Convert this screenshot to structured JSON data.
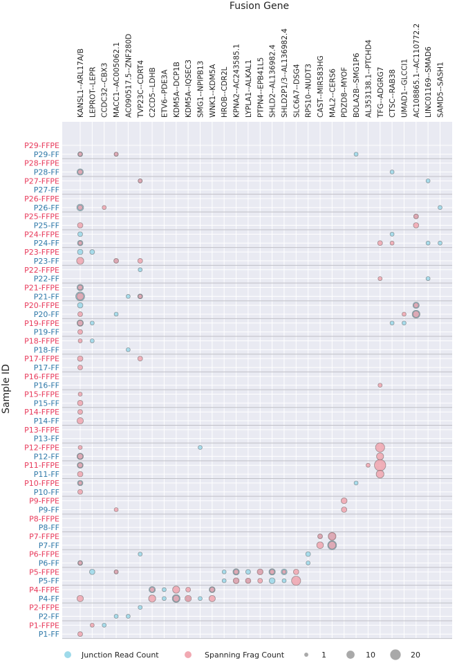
{
  "chart_data": {
    "type": "scatter",
    "xlabel": "Fusion Gene",
    "ylabel": "Sample ID",
    "grid": true,
    "legend": "bottom",
    "colors": {
      "junction": "#8dd3e6",
      "spanning": "#ef9aa4",
      "ffpe_label": "#e8395a",
      "ff_label": "#2e78a8",
      "panel": "#e9eaf2"
    },
    "genes": [
      "KANSL1--ARL17A/B",
      "LEPROT--LEPR",
      "CCDC32--CBX3",
      "MACC1--AC005062.1",
      "AC090517.5--ZNF280D",
      "TVP23C--CDRT4",
      "C2CD5--LDHB",
      "ETV6--PDE3A",
      "KDM5A--DCP1B",
      "KDM5A--IQSEC3",
      "SMG1--NPIPB13",
      "WNK1--KDM5A",
      "HROB--CDR2L",
      "KPNA2--AC243585.1",
      "LYPLA1--ALKAL1",
      "PTPN4--EPB41L5",
      "SHLD2--AL136982.4",
      "SHLD2P1/3--AL136982.4",
      "SLC6A7--DSG4",
      "RPS10--NUDT3",
      "CAST--MIR583HG",
      "MAL2--CERS6",
      "PDZD8--MYOF",
      "BOLA2B--SMG1P6",
      "AL353138.1--PTCHD4",
      "TFG--ADGRG7",
      "CTSC--RAB38",
      "UMAD1--GLCCI1",
      "AC108865.1--AC110772.2",
      "LINC01169--SMAD6",
      "SAMD5--SASH1"
    ],
    "samples": [
      "P29-FFPE",
      "P29-FF",
      "P28-FFPE",
      "P28-FF",
      "P27-FFPE",
      "P27-FF",
      "P26-FFPE",
      "P26-FF",
      "P25-FFPE",
      "P25-FF",
      "P24-FFPE",
      "P24-FF",
      "P23-FFPE",
      "P23-FF",
      "P22-FFPE",
      "P22-FF",
      "P21-FFPE",
      "P21-FF",
      "P20-FFPE",
      "P20-FF",
      "P19-FFPE",
      "P19-FF",
      "P18-FFPE",
      "P18-FF",
      "P17-FFPE",
      "P17-FF",
      "P16-FFPE",
      "P16-FF",
      "P15-FFPE",
      "P15-FF",
      "P14-FFPE",
      "P14-FF",
      "P13-FFPE",
      "P13-FF",
      "P12-FFPE",
      "P12-FF",
      "P11-FFPE",
      "P11-FF",
      "P10-FFPE",
      "P10-FF",
      "P9-FFPE",
      "P9-FF",
      "P8-FFPE",
      "P8-FF",
      "P7-FFPE",
      "P7-FF",
      "P6-FFPE",
      "P6-FF",
      "P5-FFPE",
      "P5-FF",
      "P4-FFPE",
      "P4-FF",
      "P2-FFPE",
      "P2-FF",
      "P1-FFPE",
      "P1-FF"
    ],
    "series": [
      {
        "name": "Junction Read Count",
        "points": [
          [
            "P29-FF",
            "KANSL1--ARL17A/B",
            2
          ],
          [
            "P29-FF",
            "MACC1--AC005062.1",
            1
          ],
          [
            "P29-FF",
            "BOLA2B--SMG1P6",
            1
          ],
          [
            "P28-FF",
            "KANSL1--ARL17A/B",
            5
          ],
          [
            "P28-FF",
            "CTSC--RAB38",
            1
          ],
          [
            "P27-FFPE",
            "TVP23C--CDRT4",
            1
          ],
          [
            "P27-FFPE",
            "LINC01169--SMAD6",
            1
          ],
          [
            "P26-FF",
            "KANSL1--ARL17A/B",
            6
          ],
          [
            "P26-FF",
            "SAMD5--SASH1",
            1
          ],
          [
            "P25-FFPE",
            "AC108865.1--AC110772.2",
            1
          ],
          [
            "P24-FFPE",
            "KANSL1--ARL17A/B",
            2
          ],
          [
            "P24-FFPE",
            "CTSC--RAB38",
            1
          ],
          [
            "P24-FF",
            "KANSL1--ARL17A/B",
            3
          ],
          [
            "P24-FF",
            "LINC01169--SMAD6",
            1
          ],
          [
            "P24-FF",
            "SAMD5--SASH1",
            1
          ],
          [
            "P23-FFPE",
            "KANSL1--ARL17A/B",
            3
          ],
          [
            "P23-FFPE",
            "LEPROT--LEPR",
            2
          ],
          [
            "P23-FF",
            "MACC1--AC005062.1",
            1
          ],
          [
            "P22-FFPE",
            "TVP23C--CDRT4",
            1
          ],
          [
            "P22-FF",
            "LINC01169--SMAD6",
            1
          ],
          [
            "P21-FFPE",
            "KANSL1--ARL17A/B",
            5
          ],
          [
            "P21-FF",
            "KANSL1--ARL17A/B",
            13
          ],
          [
            "P21-FF",
            "AC090517.5--ZNF280D",
            1
          ],
          [
            "P21-FF",
            "TVP23C--CDRT4",
            2
          ],
          [
            "P20-FFPE",
            "KANSL1--ARL17A/B",
            3
          ],
          [
            "P20-FFPE",
            "AC108865.1--AC110772.2",
            5
          ],
          [
            "P20-FF",
            "MACC1--AC005062.1",
            1
          ],
          [
            "P20-FF",
            "AC108865.1--AC110772.2",
            9
          ],
          [
            "P19-FFPE",
            "KANSL1--ARL17A/B",
            5
          ],
          [
            "P19-FFPE",
            "LEPROT--LEPR",
            1
          ],
          [
            "P19-FFPE",
            "CTSC--RAB38",
            1
          ],
          [
            "P19-FFPE",
            "UMAD1--GLCCI1",
            1
          ],
          [
            "P18-FFPE",
            "LEPROT--LEPR",
            1
          ],
          [
            "P18-FF",
            "AC090517.5--ZNF280D",
            1
          ],
          [
            "P12-FFPE",
            "SMG1--NPIPB13",
            1
          ],
          [
            "P12-FF",
            "KANSL1--ARL17A/B",
            5
          ],
          [
            "P11-FFPE",
            "KANSL1--ARL17A/B",
            4
          ],
          [
            "P10-FFPE",
            "KANSL1--ARL17A/B",
            3
          ],
          [
            "P10-FFPE",
            "BOLA2B--SMG1P6",
            1
          ],
          [
            "P7-FFPE",
            "CAST--MIR583HG",
            1
          ],
          [
            "P7-FFPE",
            "MAL2--CERS6",
            6
          ],
          [
            "P7-FF",
            "MAL2--CERS6",
            13
          ],
          [
            "P6-FFPE",
            "TVP23C--CDRT4",
            1
          ],
          [
            "P6-FFPE",
            "RPS10--NUDT3",
            2
          ],
          [
            "P6-FF",
            "KANSL1--ARL17A/B",
            2
          ],
          [
            "P6-FF",
            "RPS10--NUDT3",
            1
          ],
          [
            "P5-FFPE",
            "LEPROT--LEPR",
            3
          ],
          [
            "P5-FFPE",
            "MACC1--AC005062.1",
            1
          ],
          [
            "P5-FFPE",
            "HROB--CDR2L",
            1
          ],
          [
            "P5-FFPE",
            "KPNA2--AC243585.1",
            5
          ],
          [
            "P5-FFPE",
            "LYPLA1--ALKAL1",
            2
          ],
          [
            "P5-FFPE",
            "PTPN4--EPB41L5",
            2
          ],
          [
            "P5-FFPE",
            "SHLD2--AL136982.4",
            5
          ],
          [
            "P5-FFPE",
            "SHLD2P1/3--AL136982.4",
            4
          ],
          [
            "P5-FF",
            "HROB--CDR2L",
            1
          ],
          [
            "P5-FF",
            "KPNA2--AC243585.1",
            2
          ],
          [
            "P5-FF",
            "LYPLA1--ALKAL1",
            1
          ],
          [
            "P5-FF",
            "SHLD2--AL136982.4",
            4
          ],
          [
            "P5-FF",
            "SHLD2P1/3--AL136982.4",
            1
          ],
          [
            "P4-FFPE",
            "C2CD5--LDHB",
            5
          ],
          [
            "P4-FFPE",
            "ETV6--PDE3A",
            1
          ],
          [
            "P4-FFPE",
            "WNK1--KDM5A",
            4
          ],
          [
            "P4-FF",
            "ETV6--PDE3A",
            1
          ],
          [
            "P4-FF",
            "KDM5A--DCP1B",
            9
          ],
          [
            "P4-FF",
            "KDM5A--IQSEC3",
            1
          ],
          [
            "P4-FF",
            "SMG1--NPIPB13",
            1
          ],
          [
            "P2-FFPE",
            "TVP23C--CDRT4",
            1
          ],
          [
            "P2-FF",
            "MACC1--AC005062.1",
            1
          ],
          [
            "P2-FF",
            "AC090517.5--ZNF280D",
            1
          ],
          [
            "P1-FFPE",
            "CCDC32--CBX3",
            1
          ]
        ]
      },
      {
        "name": "Spanning Frag Count",
        "points": [
          [
            "P29-FF",
            "KANSL1--ARL17A/B",
            1
          ],
          [
            "P29-FF",
            "MACC1--AC005062.1",
            1
          ],
          [
            "P28-FF",
            "KANSL1--ARL17A/B",
            2
          ],
          [
            "P27-FFPE",
            "TVP23C--CDRT4",
            1
          ],
          [
            "P26-FF",
            "KANSL1--ARL17A/B",
            2
          ],
          [
            "P26-FF",
            "CCDC32--CBX3",
            1
          ],
          [
            "P25-FFPE",
            "AC108865.1--AC110772.2",
            2
          ],
          [
            "P25-FF",
            "KANSL1--ARL17A/B",
            3
          ],
          [
            "P25-FF",
            "AC108865.1--AC110772.2",
            3
          ],
          [
            "P24-FF",
            "KANSL1--ARL17A/B",
            1
          ],
          [
            "P24-FF",
            "TFG--ADGRG7",
            2
          ],
          [
            "P24-FF",
            "CTSC--RAB38",
            1
          ],
          [
            "P23-FF",
            "KANSL1--ARL17A/B",
            7
          ],
          [
            "P23-FF",
            "MACC1--AC005062.1",
            2
          ],
          [
            "P23-FF",
            "TVP23C--CDRT4",
            2
          ],
          [
            "P22-FF",
            "TFG--ADGRG7",
            1
          ],
          [
            "P21-FFPE",
            "KANSL1--ARL17A/B",
            2
          ],
          [
            "P21-FF",
            "KANSL1--ARL17A/B",
            7
          ],
          [
            "P21-FF",
            "TVP23C--CDRT4",
            1
          ],
          [
            "P20-FFPE",
            "AC108865.1--AC110772.2",
            2
          ],
          [
            "P20-FF",
            "KANSL1--ARL17A/B",
            2
          ],
          [
            "P20-FF",
            "UMAD1--GLCCI1",
            1
          ],
          [
            "P20-FF",
            "AC108865.1--AC110772.2",
            5
          ],
          [
            "P19-FFPE",
            "KANSL1--ARL17A/B",
            3
          ],
          [
            "P19-FF",
            "KANSL1--ARL17A/B",
            2
          ],
          [
            "P18-FFPE",
            "KANSL1--ARL17A/B",
            1
          ],
          [
            "P17-FFPE",
            "KANSL1--ARL17A/B",
            3
          ],
          [
            "P17-FFPE",
            "TVP23C--CDRT4",
            2
          ],
          [
            "P17-FF",
            "KANSL1--ARL17A/B",
            2
          ],
          [
            "P16-FF",
            "TFG--ADGRG7",
            1
          ],
          [
            "P15-FFPE",
            "KANSL1--ARL17A/B",
            1
          ],
          [
            "P15-FF",
            "KANSL1--ARL17A/B",
            3
          ],
          [
            "P14-FFPE",
            "KANSL1--ARL17A/B",
            2
          ],
          [
            "P14-FF",
            "KANSL1--ARL17A/B",
            5
          ],
          [
            "P12-FFPE",
            "KANSL1--ARL17A/B",
            1
          ],
          [
            "P12-FFPE",
            "TFG--ADGRG7",
            14
          ],
          [
            "P12-FF",
            "KANSL1--ARL17A/B",
            3
          ],
          [
            "P12-FF",
            "TFG--ADGRG7",
            7
          ],
          [
            "P11-FFPE",
            "KANSL1--ARL17A/B",
            2
          ],
          [
            "P11-FFPE",
            "AL353138.1--PTCHD4",
            1
          ],
          [
            "P11-FFPE",
            "TFG--ADGRG7",
            24
          ],
          [
            "P11-FF",
            "KANSL1--ARL17A/B",
            3
          ],
          [
            "P11-FF",
            "TFG--ADGRG7",
            9
          ],
          [
            "P10-FFPE",
            "KANSL1--ARL17A/B",
            1
          ],
          [
            "P10-FF",
            "KANSL1--ARL17A/B",
            2
          ],
          [
            "P9-FFPE",
            "PDZD8--MYOF",
            4
          ],
          [
            "P9-FF",
            "MACC1--AC005062.1",
            1
          ],
          [
            "P9-FF",
            "PDZD8--MYOF",
            3
          ],
          [
            "P7-FFPE",
            "CAST--MIR583HG",
            2
          ],
          [
            "P7-FFPE",
            "MAL2--CERS6",
            9
          ],
          [
            "P7-FF",
            "CAST--MIR583HG",
            6
          ],
          [
            "P7-FF",
            "MAL2--CERS6",
            8
          ],
          [
            "P6-FF",
            "KANSL1--ARL17A/B",
            1
          ],
          [
            "P5-FFPE",
            "MACC1--AC005062.1",
            1
          ],
          [
            "P5-FFPE",
            "KPNA2--AC243585.1",
            2
          ],
          [
            "P5-FFPE",
            "PTPN4--EPB41L5",
            4
          ],
          [
            "P5-FFPE",
            "SHLD2--AL136982.4",
            2
          ],
          [
            "P5-FFPE",
            "SHLD2P1/3--AL136982.4",
            1
          ],
          [
            "P5-FFPE",
            "SLC6A7--DSG4",
            3
          ],
          [
            "P5-FF",
            "KPNA2--AC243585.1",
            4
          ],
          [
            "P5-FF",
            "LYPLA1--ALKAL1",
            3
          ],
          [
            "P5-FF",
            "PTPN4--EPB41L5",
            2
          ],
          [
            "P5-FF",
            "SLC6A7--DSG4",
            14
          ],
          [
            "P4-FFPE",
            "C2CD5--LDHB",
            2
          ],
          [
            "P4-FFPE",
            "KDM5A--DCP1B",
            7
          ],
          [
            "P4-FFPE",
            "KDM5A--IQSEC3",
            2
          ],
          [
            "P4-FFPE",
            "WNK1--KDM5A",
            2
          ],
          [
            "P4-FF",
            "KANSL1--ARL17A/B",
            5
          ],
          [
            "P4-FF",
            "C2CD5--LDHB",
            7
          ],
          [
            "P4-FF",
            "KDM5A--DCP1B",
            5
          ],
          [
            "P4-FF",
            "KDM5A--IQSEC3",
            5
          ],
          [
            "P4-FF",
            "WNK1--KDM5A",
            5
          ],
          [
            "P1-FFPE",
            "LEPROT--LEPR",
            1
          ],
          [
            "P1-FF",
            "KANSL1--ARL17A/B",
            2
          ]
        ]
      }
    ],
    "size_legend": [
      {
        "label": "1",
        "value": 1
      },
      {
        "label": "10",
        "value": 10
      },
      {
        "label": "20",
        "value": 20
      }
    ]
  }
}
